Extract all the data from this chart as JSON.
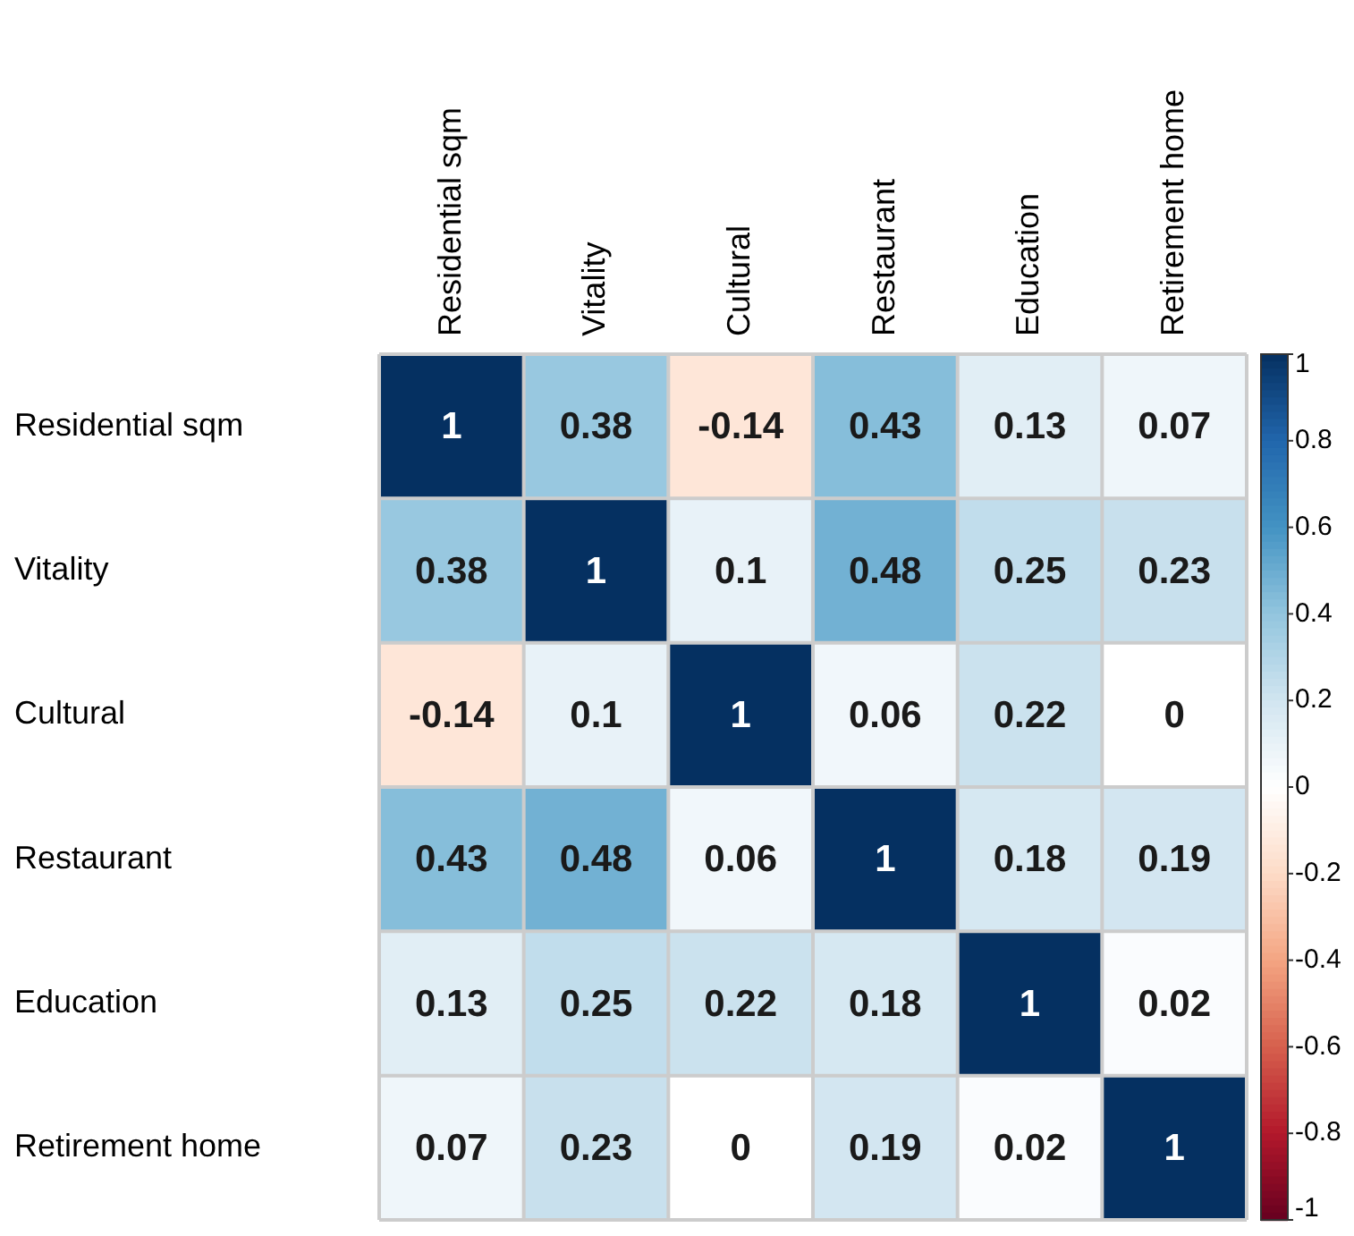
{
  "chart_data": {
    "type": "heatmap",
    "categories": [
      "Residential sqm",
      "Vitality",
      "Cultural",
      "Restaurant",
      "Education",
      "Retirement home"
    ],
    "y_categories": [
      "Residential sqm",
      "Vitality",
      "Cultural",
      "Restaurant",
      "Education",
      "Retirement home"
    ],
    "cells": [
      [
        1,
        0.38,
        -0.14,
        0.43,
        0.13,
        0.07
      ],
      [
        0.38,
        1,
        0.1,
        0.48,
        0.25,
        0.23
      ],
      [
        -0.14,
        0.1,
        1,
        0.06,
        0.22,
        0
      ],
      [
        0.43,
        0.48,
        0.06,
        1,
        0.18,
        0.19
      ],
      [
        0.13,
        0.25,
        0.22,
        0.18,
        1,
        0.02
      ],
      [
        0.07,
        0.23,
        0,
        0.19,
        0.02,
        1
      ]
    ],
    "clim": [
      -1,
      1
    ],
    "cticks": [
      1,
      0.8,
      0.6,
      0.4,
      0.2,
      0,
      -0.2,
      -0.4,
      -0.6,
      -0.8,
      -1
    ],
    "data_labels": true
  }
}
